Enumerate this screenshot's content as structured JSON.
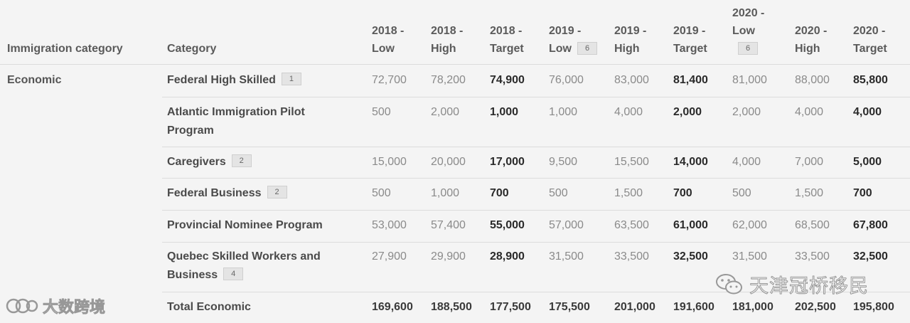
{
  "table": {
    "headers": {
      "immigration_category": "Immigration category",
      "category": "Category",
      "years": [
        {
          "label": "2018 -\nLow"
        },
        {
          "label": "2018 -\nHigh"
        },
        {
          "label": "2018 -\nTarget"
        },
        {
          "label": "2019 -\nLow",
          "footnote": "6"
        },
        {
          "label": "2019 -\nHigh"
        },
        {
          "label": "2019 -\nTarget"
        },
        {
          "label": "2020 -\nLow",
          "footnote": "6"
        },
        {
          "label": "2020 -\nHigh"
        },
        {
          "label": "2020 -\nTarget"
        }
      ]
    },
    "group": "Economic",
    "rows": [
      {
        "label": "Federal High Skilled",
        "footnote": "1",
        "values": [
          "72,700",
          "78,200",
          "74,900",
          "76,000",
          "83,000",
          "81,400",
          "81,000",
          "88,000",
          "85,800"
        ]
      },
      {
        "label": "Atlantic Immigration Pilot Program",
        "footnote": "",
        "values": [
          "500",
          "2,000",
          "1,000",
          "1,000",
          "4,000",
          "2,000",
          "2,000",
          "4,000",
          "4,000"
        ]
      },
      {
        "label": "Caregivers",
        "footnote": "2",
        "values": [
          "15,000",
          "20,000",
          "17,000",
          "9,500",
          "15,500",
          "14,000",
          "4,000",
          "7,000",
          "5,000"
        ]
      },
      {
        "label": "Federal Business",
        "footnote": "2",
        "values": [
          "500",
          "1,000",
          "700",
          "500",
          "1,500",
          "700",
          "500",
          "1,500",
          "700"
        ]
      },
      {
        "label": "Provincial Nominee Program",
        "footnote": "",
        "values": [
          "53,000",
          "57,400",
          "55,000",
          "57,000",
          "63,500",
          "61,000",
          "62,000",
          "68,500",
          "67,800"
        ]
      },
      {
        "label": "Quebec Skilled Workers and Business",
        "footnote": "4",
        "values": [
          "27,900",
          "29,900",
          "28,900",
          "31,500",
          "33,500",
          "32,500",
          "31,500",
          "33,500",
          "32,500"
        ]
      }
    ],
    "total": {
      "label": "Total Economic",
      "values": [
        "169,600",
        "188,500",
        "177,500",
        "175,500",
        "201,000",
        "191,600",
        "181,000",
        "202,500",
        "195,800"
      ]
    }
  },
  "watermarks": {
    "right": "天津冠桥移民",
    "left": "大数跨境"
  }
}
